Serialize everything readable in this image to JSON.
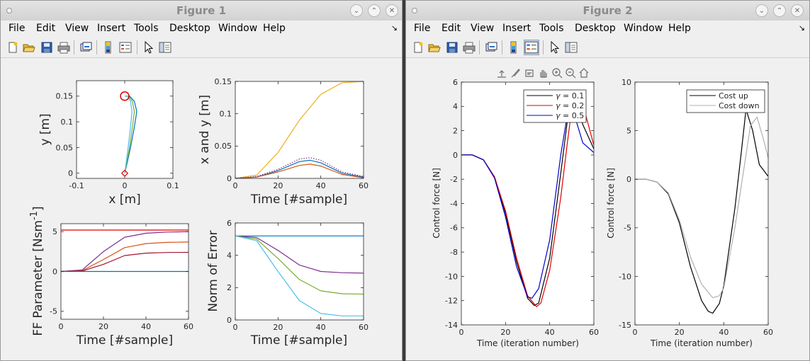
{
  "colors": {
    "c1": "#0072bd",
    "c2": "#d95319",
    "c3": "#edb120",
    "c4": "#7e2f8e",
    "c5": "#77ac30",
    "c6": "#4dbeee",
    "c7": "#a2142f",
    "black": "#000000",
    "red": "#e00000",
    "blue": "#0000cc",
    "gray": "#b0b0b0"
  },
  "menus": [
    "File",
    "Edit",
    "View",
    "Insert",
    "Tools",
    "Desktop",
    "Window",
    "Help"
  ],
  "figure1": {
    "title": "Figure 1",
    "subplots": {
      "xy": {
        "xlabel": "x [m]",
        "ylabel": "y [m]",
        "xticks": [
          "-0.1",
          "0",
          "0.1"
        ],
        "yticks": [
          "0",
          "0.05",
          "0.1",
          "0.15"
        ]
      },
      "pos": {
        "xlabel": "Time [#sample]",
        "ylabel": "x and y [m]",
        "xticks": [
          "0",
          "20",
          "40",
          "60"
        ],
        "yticks": [
          "0",
          "0.05",
          "0.1",
          "0.15"
        ]
      },
      "ff": {
        "xlabel": "Time [#sample]",
        "ylabel": "FF Parameter [Nsm",
        "ylabel_sup": "-1",
        "ylabel_end": "]",
        "xticks": [
          "0",
          "20",
          "40",
          "60"
        ],
        "yticks": [
          "-5",
          "0",
          "5"
        ]
      },
      "err": {
        "xlabel": "Time [#sample]",
        "ylabel": "Norm of Error",
        "xticks": [
          "0",
          "20",
          "40",
          "60"
        ],
        "yticks": [
          "0",
          "2",
          "4",
          "6"
        ]
      }
    }
  },
  "figure2": {
    "title": "Figure 2",
    "left": {
      "xlabel": "Time (iteration number)",
      "ylabel": "Control force [N]",
      "xticks": [
        "0",
        "20",
        "40",
        "60"
      ],
      "yticks": [
        "-14",
        "-12",
        "-10",
        "-8",
        "-6",
        "-4",
        "-2",
        "0",
        "2",
        "4",
        "6"
      ],
      "legend": [
        {
          "greek": "γ",
          "label": " = 0.1"
        },
        {
          "greek": "γ",
          "label": " = 0.2"
        },
        {
          "greek": "γ",
          "label": " = 0.5"
        }
      ]
    },
    "right": {
      "xlabel": "Time (iteration number)",
      "ylabel": "Control force [N]",
      "xticks": [
        "0",
        "20",
        "40",
        "60"
      ],
      "yticks": [
        "-15",
        "-10",
        "-5",
        "0",
        "5",
        "10"
      ],
      "legend": [
        {
          "label": "Cost up"
        },
        {
          "label": "Cost down"
        }
      ]
    }
  },
  "chart_data": [
    {
      "type": "line",
      "xlabel": "x [m]",
      "ylabel": "y [m]",
      "xlim": [
        -0.1,
        0.1
      ],
      "ylim": [
        -0.01,
        0.18
      ],
      "series": [
        {
          "x": [
            0,
            0.005,
            0.012,
            0.02,
            0.025,
            0.02,
            0.01,
            0
          ],
          "y": [
            0,
            0.02,
            0.05,
            0.09,
            0.12,
            0.14,
            0.15,
            0.15
          ]
        },
        {
          "x": [
            0,
            0.004,
            0.01,
            0.016,
            0.02,
            0.016,
            0.008,
            0
          ],
          "y": [
            0,
            0.02,
            0.05,
            0.09,
            0.12,
            0.14,
            0.15,
            0.15
          ]
        },
        {
          "x": [
            0,
            0.003,
            0.007,
            0.012,
            0.015,
            0.012,
            0.006,
            0
          ],
          "y": [
            0,
            0.02,
            0.05,
            0.09,
            0.12,
            0.14,
            0.15,
            0.15
          ]
        }
      ]
    },
    {
      "type": "line",
      "xlabel": "Time [#sample]",
      "ylabel": "x and y [m]",
      "xlim": [
        0,
        60
      ],
      "ylim": [
        0,
        0.15
      ],
      "series": [
        {
          "x": [
            0,
            10,
            20,
            30,
            40,
            50,
            60
          ],
          "y": [
            0,
            0.005,
            0.04,
            0.09,
            0.13,
            0.148,
            0.15
          ]
        },
        {
          "x": [
            0,
            10,
            20,
            30,
            35,
            40,
            50,
            60
          ],
          "y": [
            0,
            0.002,
            0.012,
            0.026,
            0.028,
            0.024,
            0.008,
            0.002
          ]
        },
        {
          "x": [
            0,
            10,
            20,
            30,
            35,
            40,
            50,
            60
          ],
          "y": [
            0,
            0.002,
            0.01,
            0.02,
            0.022,
            0.019,
            0.006,
            0.001
          ]
        },
        {
          "x": [
            0,
            10,
            20,
            30,
            35,
            40,
            50,
            60
          ],
          "y": [
            0,
            0.003,
            0.014,
            0.03,
            0.032,
            0.028,
            0.01,
            0.003
          ]
        }
      ]
    },
    {
      "type": "line",
      "xlabel": "Time [#sample]",
      "ylabel": "FF Parameter [Nsm-1]",
      "xlim": [
        0,
        60
      ],
      "ylim": [
        -6,
        6
      ],
      "series": [
        {
          "x": [
            0,
            60
          ],
          "y": [
            5.2,
            5.2
          ]
        },
        {
          "x": [
            0,
            10,
            20,
            30,
            40,
            50,
            60
          ],
          "y": [
            0,
            0.2,
            2.5,
            4.3,
            4.8,
            4.95,
            5.0
          ]
        },
        {
          "x": [
            0,
            10,
            20,
            30,
            40,
            50,
            60
          ],
          "y": [
            0,
            0.1,
            1.5,
            3.0,
            3.5,
            3.65,
            3.7
          ]
        },
        {
          "x": [
            0,
            10,
            20,
            30,
            40,
            50,
            60
          ],
          "y": [
            0,
            0.05,
            0.9,
            2.0,
            2.3,
            2.38,
            2.4
          ]
        },
        {
          "x": [
            0,
            60
          ],
          "y": [
            0,
            0
          ]
        }
      ]
    },
    {
      "type": "line",
      "xlabel": "Time [#sample]",
      "ylabel": "Norm of Error",
      "xlim": [
        0,
        60
      ],
      "ylim": [
        0,
        6
      ],
      "series": [
        {
          "x": [
            0,
            60
          ],
          "y": [
            5.2,
            5.2
          ]
        },
        {
          "x": [
            0,
            10,
            20,
            30,
            40,
            50,
            60
          ],
          "y": [
            5.2,
            5.1,
            4.3,
            3.4,
            3.0,
            2.92,
            2.9
          ]
        },
        {
          "x": [
            0,
            10,
            20,
            30,
            40,
            50,
            60
          ],
          "y": [
            5.2,
            5.0,
            3.8,
            2.5,
            1.8,
            1.62,
            1.6
          ]
        },
        {
          "x": [
            0,
            10,
            20,
            30,
            40,
            50,
            60
          ],
          "y": [
            5.2,
            4.9,
            3.0,
            1.2,
            0.4,
            0.25,
            0.25
          ]
        }
      ]
    },
    {
      "type": "line",
      "xlabel": "Time (iteration number)",
      "ylabel": "Control force [N]",
      "xlim": [
        0,
        60
      ],
      "ylim": [
        -14,
        6
      ],
      "legend_position": "top-right",
      "series": [
        {
          "name": "γ = 0.1",
          "x": [
            0,
            5,
            10,
            15,
            20,
            25,
            30,
            33,
            35,
            40,
            45,
            48,
            50,
            52,
            55,
            60
          ],
          "y": [
            0,
            0,
            -0.4,
            -1.8,
            -4.8,
            -8.8,
            -11.8,
            -12.4,
            -12.2,
            -8.5,
            -1.5,
            2.8,
            4.5,
            4.3,
            2.5,
            0.5
          ]
        },
        {
          "name": "γ = 0.2",
          "x": [
            0,
            5,
            10,
            15,
            20,
            25,
            30,
            34,
            36,
            40,
            45,
            48,
            50,
            53,
            56,
            60
          ],
          "y": [
            0,
            0,
            -0.4,
            -1.8,
            -4.6,
            -8.5,
            -11.6,
            -12.5,
            -12.2,
            -9.5,
            -3.5,
            1.0,
            3.8,
            5.0,
            3.5,
            0.8
          ]
        },
        {
          "name": "γ = 0.5",
          "x": [
            0,
            5,
            10,
            15,
            20,
            25,
            30,
            32,
            35,
            40,
            45,
            48,
            50,
            52,
            55,
            60
          ],
          "y": [
            0,
            0,
            -0.4,
            -1.9,
            -5.1,
            -9.2,
            -11.7,
            -11.8,
            -11.0,
            -7.0,
            0.0,
            3.3,
            3.6,
            2.8,
            1.0,
            0.2
          ]
        }
      ]
    },
    {
      "type": "line",
      "xlabel": "Time (iteration number)",
      "ylabel": "Control force [N]",
      "xlim": [
        0,
        60
      ],
      "ylim": [
        -15,
        10
      ],
      "legend_position": "top-right",
      "series": [
        {
          "name": "Cost up",
          "x": [
            0,
            5,
            10,
            15,
            20,
            25,
            30,
            33,
            35,
            38,
            40,
            45,
            48,
            50,
            53,
            56,
            60
          ],
          "y": [
            0,
            0,
            -0.3,
            -1.5,
            -4.5,
            -9.0,
            -12.5,
            -13.6,
            -13.8,
            -12.8,
            -11.0,
            -3.0,
            3.0,
            7.2,
            5.0,
            1.5,
            0.3
          ]
        },
        {
          "name": "Cost down",
          "x": [
            0,
            5,
            10,
            15,
            20,
            25,
            30,
            35,
            38,
            40,
            45,
            50,
            52,
            55,
            58,
            60
          ],
          "y": [
            0,
            0,
            -0.3,
            -1.4,
            -4.2,
            -8.0,
            -10.8,
            -12.2,
            -12.0,
            -11.2,
            -5.0,
            2.5,
            5.5,
            6.4,
            4.0,
            2.2
          ]
        }
      ]
    }
  ]
}
